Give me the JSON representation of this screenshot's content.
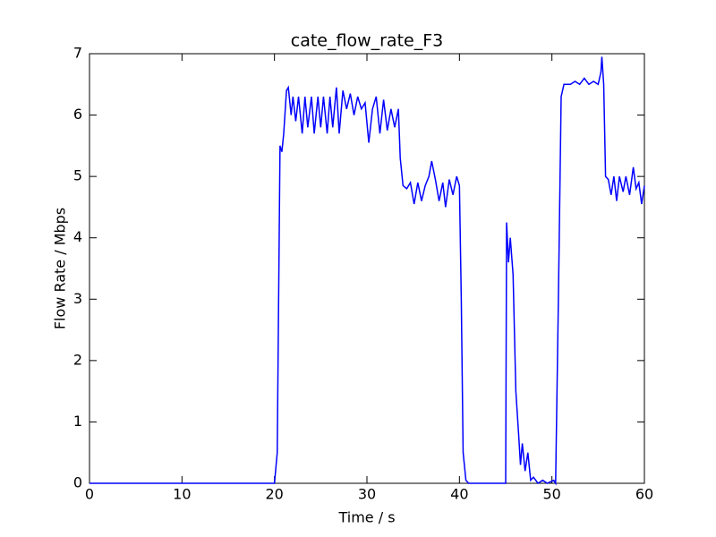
{
  "chart_data": {
    "type": "line",
    "title": "cate_flow_rate_F3",
    "xlabel": "Time / s",
    "ylabel": "Flow Rate / Mbps",
    "xlim": [
      0,
      60
    ],
    "ylim": [
      0,
      7
    ],
    "xticks": [
      0,
      10,
      20,
      30,
      40,
      50,
      60
    ],
    "yticks": [
      0,
      1,
      2,
      3,
      4,
      5,
      6,
      7
    ],
    "series": [
      {
        "name": "F3",
        "color": "#0000ff",
        "x": [
          0,
          20,
          20.3,
          20.6,
          20.8,
          21,
          21.3,
          21.5,
          21.8,
          22,
          22.3,
          22.6,
          23,
          23.3,
          23.6,
          24,
          24.3,
          24.7,
          25,
          25.3,
          25.7,
          26,
          26.3,
          26.7,
          27,
          27.4,
          27.8,
          28.2,
          28.6,
          29,
          29.4,
          29.8,
          30.2,
          30.6,
          31,
          31.4,
          31.8,
          32.2,
          32.6,
          33,
          33.4,
          33.6,
          33.9,
          34.3,
          34.7,
          35.1,
          35.5,
          35.9,
          36.3,
          36.7,
          37,
          37.4,
          37.8,
          38.2,
          38.5,
          38.9,
          39.3,
          39.7,
          40,
          40.2,
          40.4,
          40.7,
          41,
          45,
          45.1,
          45.3,
          45.5,
          45.8,
          46.1,
          46.4,
          46.6,
          46.8,
          47.1,
          47.4,
          47.7,
          48,
          48.5,
          49,
          49.5,
          50.2,
          50.4,
          50.7,
          51,
          51.3,
          52,
          52.5,
          53,
          53.5,
          54,
          54.5,
          55,
          55.3,
          55.4,
          55.6,
          55.8,
          56.1,
          56.4,
          56.7,
          57,
          57.3,
          57.7,
          58,
          58.4,
          58.8,
          59.1,
          59.4,
          59.7,
          60
        ],
        "values": [
          0,
          0,
          0.5,
          5.5,
          5.4,
          5.7,
          6.4,
          6.45,
          6.0,
          6.3,
          5.9,
          6.3,
          5.7,
          6.3,
          5.8,
          6.3,
          5.7,
          6.3,
          5.8,
          6.3,
          5.7,
          6.3,
          5.8,
          6.45,
          5.7,
          6.4,
          6.1,
          6.35,
          6.0,
          6.3,
          6.1,
          6.2,
          5.55,
          6.1,
          6.3,
          5.7,
          6.25,
          5.75,
          6.1,
          5.8,
          6.1,
          5.3,
          4.85,
          4.8,
          4.9,
          4.55,
          4.9,
          4.6,
          4.85,
          5.0,
          5.25,
          4.95,
          4.6,
          4.9,
          4.5,
          4.95,
          4.7,
          5.0,
          4.85,
          3.0,
          0.5,
          0.05,
          0,
          0,
          4.25,
          3.6,
          4.0,
          3.4,
          1.5,
          0.8,
          0.3,
          0.65,
          0.2,
          0.5,
          0.05,
          0.1,
          0,
          0.05,
          0,
          0.05,
          0,
          3,
          6.3,
          6.5,
          6.5,
          6.55,
          6.5,
          6.6,
          6.5,
          6.55,
          6.5,
          6.7,
          6.95,
          6.5,
          5.0,
          4.95,
          4.7,
          5.0,
          4.6,
          5.0,
          4.75,
          5.0,
          4.7,
          5.15,
          4.8,
          4.9,
          4.55,
          4.85
        ]
      }
    ]
  }
}
